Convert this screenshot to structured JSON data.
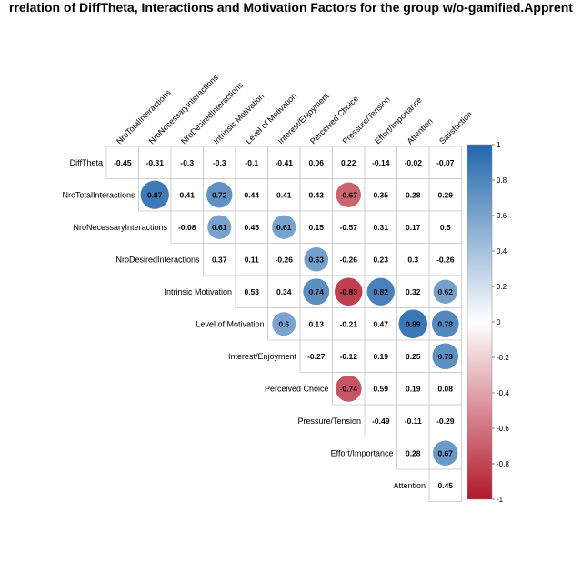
{
  "chart_data": {
    "type": "heatmap",
    "title": "rrelation of DiffTheta, Interactions and Motivation Factors for the group w/o-gamified.Apprent",
    "row_labels": [
      "DiffTheta",
      "NroTotalInteractions",
      "NroNecessaryInteractions",
      "NroDesiredInteractions",
      "Intrinsic Motivation",
      "Level of Motivation",
      "Interest/Enjoyment",
      "Perceived Choice",
      "Pressure/Tension",
      "Effort/Importance",
      "Attention"
    ],
    "column_labels": [
      "NroTotalInteractions",
      "NroNecessaryInteractions",
      "NroDesiredInteractions",
      "Intrinsic Motivation",
      "Level of Motivation",
      "Interest/Enjoyment",
      "Perceived Choice",
      "Pressure/Tension",
      "Effort/Importance",
      "Attention",
      "Satisfaction"
    ],
    "values": [
      [
        -0.45,
        -0.31,
        -0.3,
        -0.3,
        -0.1,
        -0.41,
        0.06,
        0.22,
        -0.14,
        -0.02,
        -0.07
      ],
      [
        null,
        0.87,
        0.41,
        0.72,
        0.44,
        0.41,
        0.43,
        -0.67,
        0.35,
        0.28,
        0.29
      ],
      [
        null,
        null,
        -0.08,
        0.61,
        0.45,
        0.61,
        0.15,
        -0.57,
        0.31,
        0.17,
        0.5
      ],
      [
        null,
        null,
        null,
        0.37,
        0.11,
        -0.26,
        0.63,
        -0.26,
        0.23,
        0.3,
        -0.26
      ],
      [
        null,
        null,
        null,
        null,
        0.53,
        0.34,
        0.74,
        -0.83,
        0.82,
        0.32,
        0.62
      ],
      [
        null,
        null,
        null,
        null,
        null,
        0.6,
        0.13,
        -0.21,
        0.47,
        0.89,
        0.78
      ],
      [
        null,
        null,
        null,
        null,
        null,
        null,
        -0.27,
        -0.12,
        0.19,
        0.25,
        0.73
      ],
      [
        null,
        null,
        null,
        null,
        null,
        null,
        null,
        -0.74,
        0.59,
        0.19,
        0.08
      ],
      [
        null,
        null,
        null,
        null,
        null,
        null,
        null,
        null,
        -0.49,
        -0.11,
        -0.29
      ],
      [
        null,
        null,
        null,
        null,
        null,
        null,
        null,
        null,
        null,
        0.28,
        0.67
      ],
      [
        null,
        null,
        null,
        null,
        null,
        null,
        null,
        null,
        null,
        null,
        0.45
      ]
    ],
    "value_labels": [
      [
        "-0.45",
        "-0.31",
        "-0.3",
        "-0.3",
        "-0.1",
        "-0.41",
        "0.06",
        "0.22",
        "-0.14",
        "-0.02",
        "-0.07"
      ],
      [
        null,
        "0.87",
        "0.41",
        "0.72",
        "0.44",
        "0.41",
        "0.43",
        "-0.67",
        "0.35",
        "0.28",
        "0.29"
      ],
      [
        null,
        null,
        "-0.08",
        "0.61",
        "0.45",
        "0.61",
        "0.15",
        "-0.57",
        "0.31",
        "0.17",
        "0.5"
      ],
      [
        null,
        null,
        null,
        "0.37",
        "0.11",
        "-0.26",
        "0.63",
        "-0.26",
        "0.23",
        "0.3",
        "-0.26"
      ],
      [
        null,
        null,
        null,
        null,
        "0.53",
        "0.34",
        "0.74",
        "-0.83",
        "0.82",
        "0.32",
        "0.62"
      ],
      [
        null,
        null,
        null,
        null,
        null,
        "0.6",
        "0.13",
        "-0.21",
        "0.47",
        "0.89",
        "0.78"
      ],
      [
        null,
        null,
        null,
        null,
        null,
        null,
        "-0.27",
        "-0.12",
        "0.19",
        "0.25",
        "0.73"
      ],
      [
        null,
        null,
        null,
        null,
        null,
        null,
        null,
        "-0.74",
        "0.59",
        "0.19",
        "0.08"
      ],
      [
        null,
        null,
        null,
        null,
        null,
        null,
        null,
        null,
        "-0.49",
        "-0.11",
        "-0.29"
      ],
      [
        null,
        null,
        null,
        null,
        null,
        null,
        null,
        null,
        null,
        "0.28",
        "0.67"
      ],
      [
        null,
        null,
        null,
        null,
        null,
        null,
        null,
        null,
        null,
        null,
        "0.45"
      ]
    ],
    "circle_threshold": 0.6,
    "colorbar": {
      "range": [
        -1,
        1
      ],
      "ticks": [
        "1",
        "0.8",
        "0.6",
        "0.4",
        "0.2",
        "0",
        "-0.2",
        "-0.4",
        "-0.6",
        "-0.8",
        "-1"
      ],
      "colors": {
        "positive": "#2166ac",
        "neutral": "#ffffff",
        "negative": "#b2182b"
      },
      "placement": "right"
    },
    "grid": true,
    "layout": "upper-triangle"
  }
}
